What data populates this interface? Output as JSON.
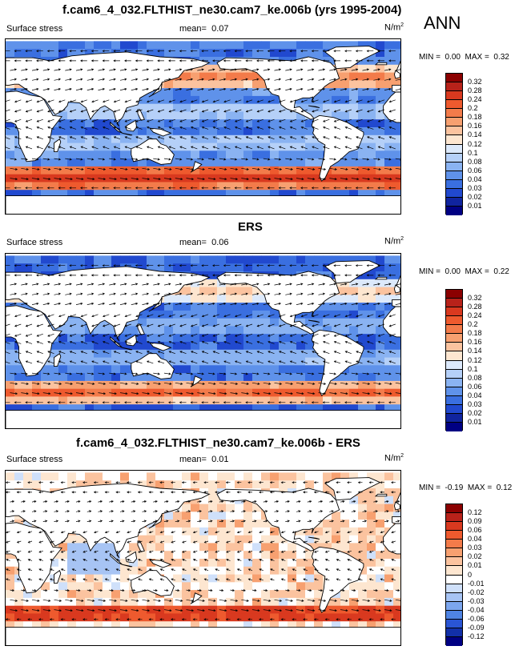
{
  "season": "ANN",
  "units": "N/m",
  "units_exp": "2",
  "panels": [
    {
      "title": "f.cam6_4_032.FLTHIST_ne30.cam7_ke.006b (yrs 1995-2004)",
      "variable": "Surface stress",
      "mean_label": "mean=",
      "mean": "0.07",
      "min_label": "MIN =",
      "min": "0.00",
      "max_label": "MAX =",
      "max": "0.32",
      "colorbar": {
        "labels": [
          "0.32",
          "0.28",
          "0.24",
          "0.2",
          "0.18",
          "0.16",
          "0.14",
          "0.12",
          "0.1",
          "0.08",
          "0.06",
          "0.04",
          "0.03",
          "0.02",
          "0.01"
        ],
        "colors": [
          "#8b0000",
          "#b8221a",
          "#d9391f",
          "#ee5a2e",
          "#f37b4a",
          "#f7a070",
          "#fbc39f",
          "#fde6d0",
          "#dce9fb",
          "#b5d0f8",
          "#8ab3f2",
          "#5f92ea",
          "#3a6fe0",
          "#2149cf",
          "#10249f",
          "#000083"
        ]
      }
    },
    {
      "title": "ERS",
      "variable": "Surface stress",
      "mean_label": "mean=",
      "mean": "0.06",
      "min_label": "MIN =",
      "min": "0.00",
      "max_label": "MAX =",
      "max": "0.22",
      "colorbar": {
        "labels": [
          "0.32",
          "0.28",
          "0.24",
          "0.2",
          "0.18",
          "0.16",
          "0.14",
          "0.12",
          "0.1",
          "0.08",
          "0.06",
          "0.04",
          "0.03",
          "0.02",
          "0.01"
        ],
        "colors": [
          "#8b0000",
          "#b8221a",
          "#d9391f",
          "#ee5a2e",
          "#f37b4a",
          "#f7a070",
          "#fbc39f",
          "#fde6d0",
          "#dce9fb",
          "#b5d0f8",
          "#8ab3f2",
          "#5f92ea",
          "#3a6fe0",
          "#2149cf",
          "#10249f",
          "#000083"
        ]
      }
    },
    {
      "title": "f.cam6_4_032.FLTHIST_ne30.cam7_ke.006b - ERS",
      "variable": "Surface stress",
      "mean_label": "mean=",
      "mean": "0.01",
      "min_label": "MIN =",
      "min": "-0.19",
      "max_label": "MAX =",
      "max": "0.12",
      "colorbar": {
        "labels": [
          "0.12",
          "0.09",
          "0.06",
          "0.04",
          "0.03",
          "0.02",
          "0.01",
          "0",
          "-0.01",
          "-0.02",
          "-0.03",
          "-0.04",
          "-0.06",
          "-0.09",
          "-0.12"
        ],
        "colors": [
          "#8b0000",
          "#b8221a",
          "#d9391f",
          "#ee5a2e",
          "#f37b4a",
          "#f7a070",
          "#fbc39f",
          "#fde6d0",
          "#ffffff",
          "#cfe0fa",
          "#a7c4f4",
          "#7ca6ee",
          "#4f84e4",
          "#2a55d4",
          "#1230a8",
          "#000083"
        ]
      }
    }
  ]
}
